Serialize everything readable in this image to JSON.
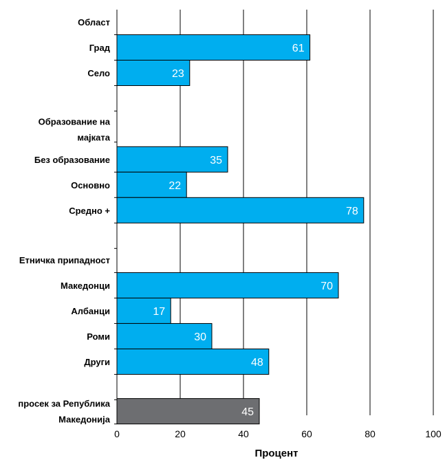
{
  "chart_data": {
    "type": "bar",
    "orientation": "horizontal",
    "xlabel": "Процент",
    "xlim": [
      0,
      100
    ],
    "xticks": [
      0,
      20,
      40,
      60,
      80,
      100
    ],
    "grid": true,
    "colors": {
      "bar": "#00AEEF",
      "average": "#6D6E71"
    },
    "rows": [
      {
        "kind": "header",
        "label": "Област"
      },
      {
        "kind": "bar",
        "label": "Град",
        "value": 61
      },
      {
        "kind": "bar",
        "label": "Село",
        "value": 23
      },
      {
        "kind": "gap"
      },
      {
        "kind": "header",
        "label": "Образование на мајката"
      },
      {
        "kind": "bar",
        "label": "Без образование",
        "value": 35
      },
      {
        "kind": "bar",
        "label": "Основно",
        "value": 22
      },
      {
        "kind": "bar",
        "label": "Средно +",
        "value": 78
      },
      {
        "kind": "gap"
      },
      {
        "kind": "header",
        "label": "Етничка припадност"
      },
      {
        "kind": "bar",
        "label": "Македонци",
        "value": 70
      },
      {
        "kind": "bar",
        "label": "Албанци",
        "value": 17
      },
      {
        "kind": "bar",
        "label": "Роми",
        "value": 30
      },
      {
        "kind": "bar",
        "label": "Други",
        "value": 48
      },
      {
        "kind": "gap"
      },
      {
        "kind": "average",
        "label": "просек за Република Македонија",
        "value": 45
      }
    ]
  }
}
